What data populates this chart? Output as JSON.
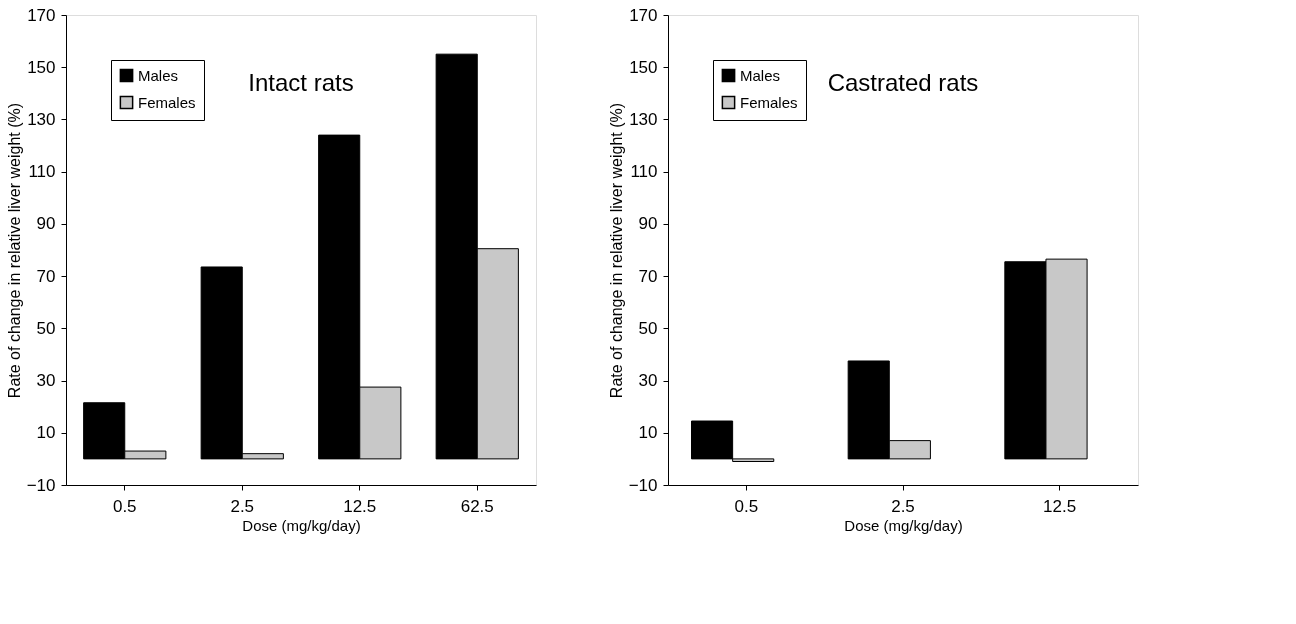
{
  "chart_data": [
    {
      "type": "bar",
      "title": "Intact rats",
      "xlabel": "Dose (mg/kg/day)",
      "ylabel": "Rate of change in relative liver weight (%)",
      "categories": [
        "0.5",
        "2.5",
        "12.5",
        "62.5"
      ],
      "series": [
        {
          "name": "Males",
          "color": "#000000",
          "values": [
            21.5,
            73.5,
            124,
            155
          ]
        },
        {
          "name": "Females",
          "color": "#c8c8c8",
          "values": [
            3,
            2,
            27.5,
            80.5
          ]
        }
      ],
      "ylim": [
        -10,
        170
      ],
      "yticks": [
        -10,
        10,
        30,
        50,
        70,
        90,
        110,
        130,
        150,
        170
      ],
      "grid": false,
      "legend": "top left"
    },
    {
      "type": "bar",
      "title": "Castrated rats",
      "xlabel": "Dose (mg/kg/day)",
      "ylabel": "Rate of change in relative liver weight (%)",
      "categories": [
        "0.5",
        "2.5",
        "12.5"
      ],
      "series": [
        {
          "name": "Males",
          "color": "#000000",
          "values": [
            14.5,
            37.5,
            75.5
          ]
        },
        {
          "name": "Females",
          "color": "#c8c8c8",
          "values": [
            -1,
            7,
            76.5
          ]
        }
      ],
      "ylim": [
        -10,
        170
      ],
      "yticks": [
        -10,
        10,
        30,
        50,
        70,
        90,
        110,
        130,
        150,
        170
      ],
      "grid": false,
      "legend": "top left"
    }
  ]
}
